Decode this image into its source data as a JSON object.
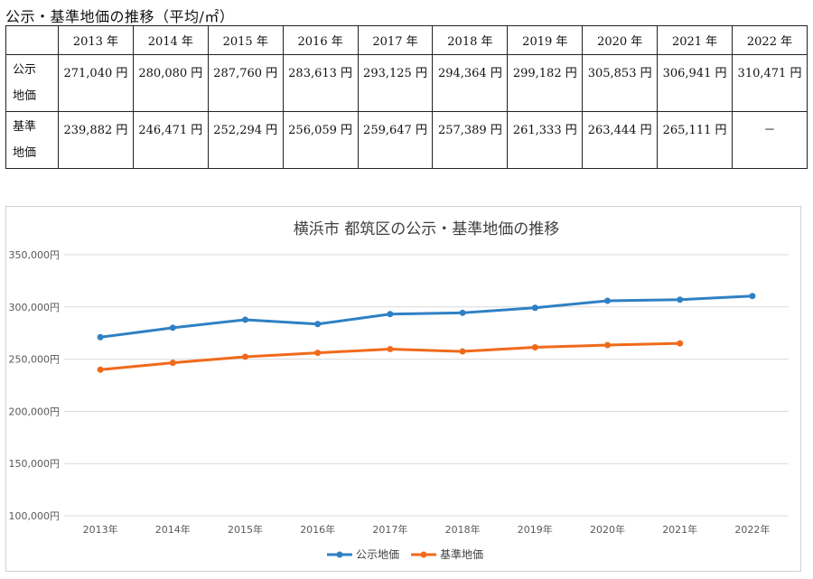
{
  "heading": "公示・基準地価の推移（平均/㎡）",
  "table": {
    "corner": "",
    "years": [
      "2013 年",
      "2014 年",
      "2015 年",
      "2016 年",
      "2017 年",
      "2018 年",
      "2019 年",
      "2020 年",
      "2021 年",
      "2022 年"
    ],
    "rows": [
      {
        "label_line1": "公示",
        "label_line2": "地価",
        "cells": [
          "271,040 円",
          "280,080 円",
          "287,760 円",
          "283,613 円",
          "293,125 円",
          "294,364 円",
          "299,182 円",
          "305,853 円",
          "306,941 円",
          "310,471 円"
        ]
      },
      {
        "label_line1": "基準",
        "label_line2": "地価",
        "cells": [
          "239,882 円",
          "246,471 円",
          "252,294 円",
          "256,059 円",
          "259,647 円",
          "257,389 円",
          "261,333 円",
          "263,444 円",
          "265,111 円",
          "－"
        ]
      }
    ]
  },
  "chart_data": {
    "type": "line",
    "title": "横浜市 都筑区の公示・基準地価の推移",
    "categories": [
      "2013年",
      "2014年",
      "2015年",
      "2016年",
      "2017年",
      "2018年",
      "2019年",
      "2020年",
      "2021年",
      "2022年"
    ],
    "series": [
      {
        "name": "公示地価",
        "color": "#2f80c4",
        "values": [
          271040,
          280080,
          287760,
          283613,
          293125,
          294364,
          299182,
          305853,
          306941,
          310471
        ]
      },
      {
        "name": "基準地価",
        "color": "#f06a1a",
        "values": [
          239882,
          246471,
          252294,
          256059,
          259647,
          257389,
          261333,
          263444,
          265111,
          null
        ]
      }
    ],
    "ylim": [
      100000,
      350000
    ],
    "yticks": [
      100000,
      150000,
      200000,
      250000,
      300000,
      350000
    ],
    "ytick_labels": [
      "100,000円",
      "150,000円",
      "200,000円",
      "250,000円",
      "300,000円",
      "350,000円"
    ],
    "xlabel": "",
    "ylabel": "",
    "grid": true,
    "legend_position": "bottom",
    "gridline_color": "#d9d9d9"
  }
}
